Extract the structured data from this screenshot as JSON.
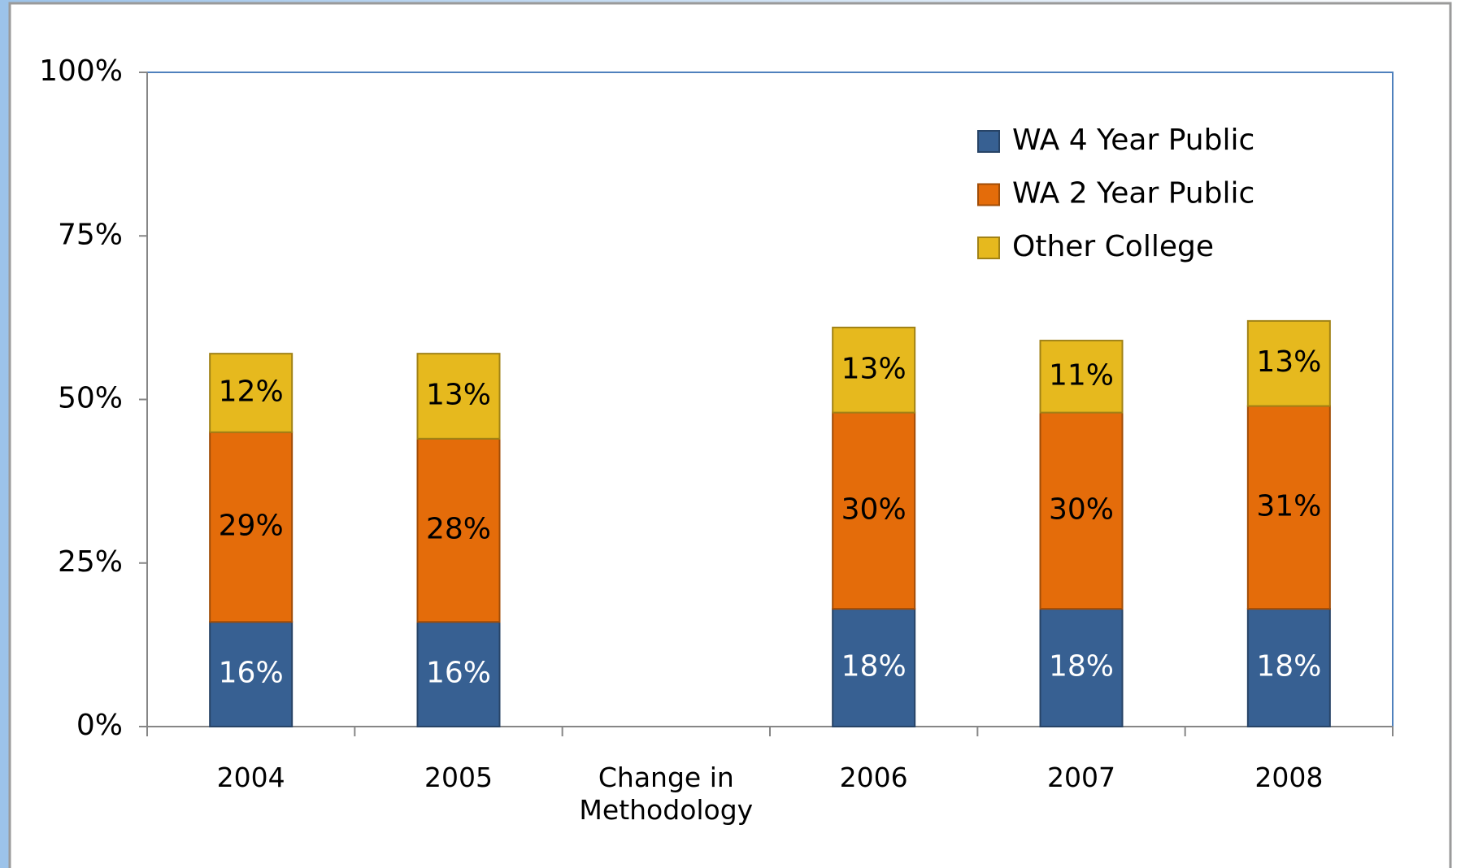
{
  "chart_data": {
    "type": "stacked_bar",
    "categories": [
      "2004",
      "2005",
      "Change in\nMethodology",
      "2006",
      "2007",
      "2008"
    ],
    "series": [
      {
        "name": "WA 4 Year Public",
        "color": "#376092",
        "values": [
          16,
          16,
          null,
          18,
          18,
          18
        ],
        "value_labels": [
          "16%",
          "16%",
          null,
          "18%",
          "18%",
          "18%"
        ]
      },
      {
        "name": "WA 2 Year Public",
        "color": "#e46c0a",
        "values": [
          29,
          28,
          null,
          30,
          30,
          31
        ],
        "value_labels": [
          "29%",
          "28%",
          null,
          "30%",
          "30%",
          "31%"
        ]
      },
      {
        "name": "Other College",
        "color": "#e6b91e",
        "values": [
          12,
          13,
          null,
          13,
          11,
          13
        ],
        "value_labels": [
          "12%",
          "13%",
          null,
          "13%",
          "11%",
          "13%"
        ]
      }
    ],
    "ylim": [
      0,
      100
    ],
    "yticks": [
      {
        "value": 0,
        "label": "0%"
      },
      {
        "value": 25,
        "label": "25%"
      },
      {
        "value": 50,
        "label": "50%"
      },
      {
        "value": 75,
        "label": "75%"
      },
      {
        "value": 100,
        "label": "100%"
      }
    ],
    "legend": "upper right"
  }
}
